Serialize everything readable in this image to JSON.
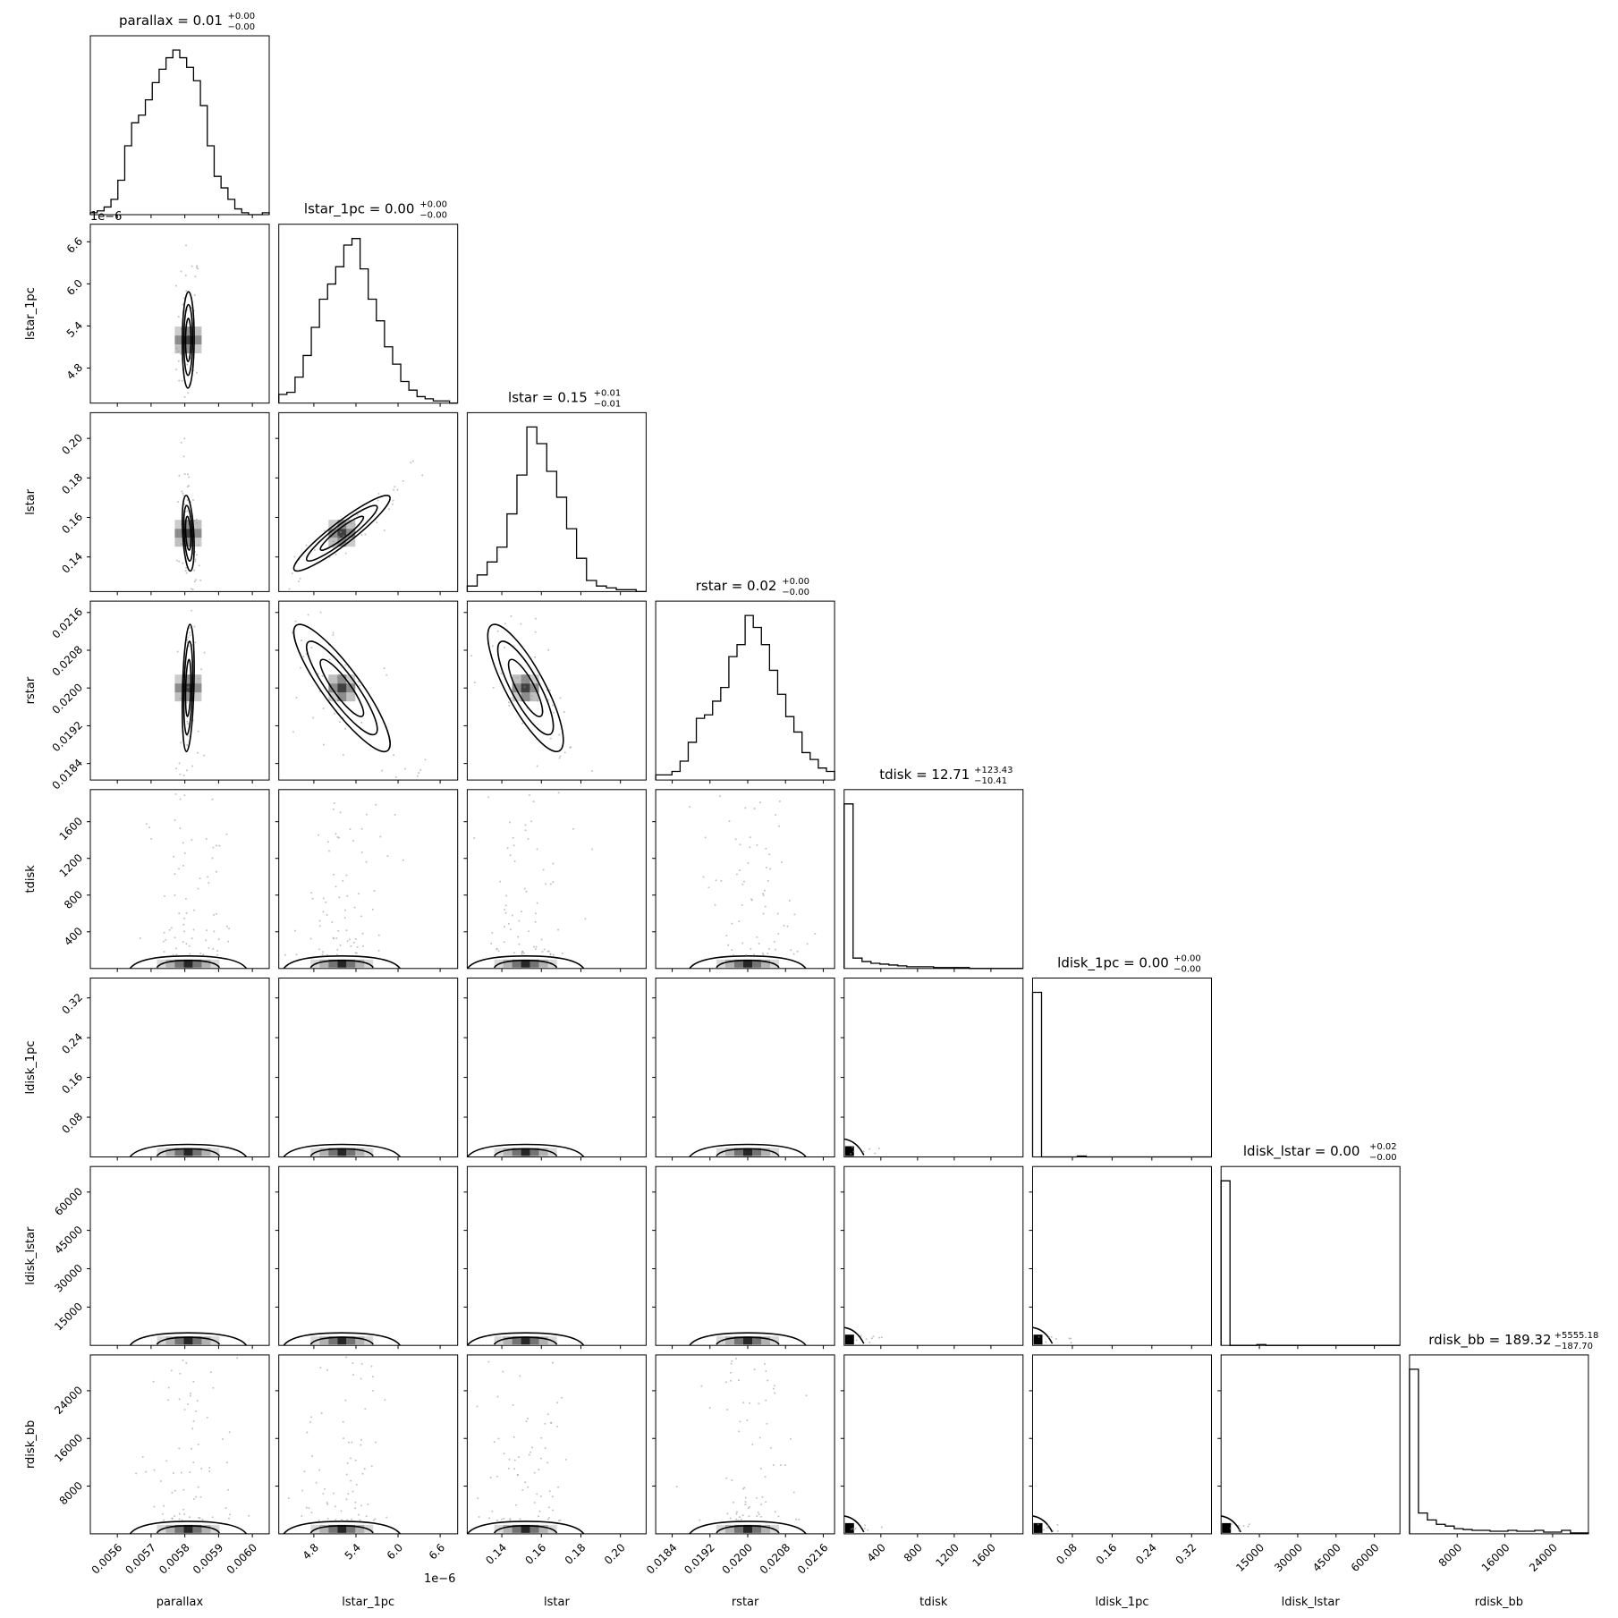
{
  "figure": {
    "type": "corner_plot",
    "params": [
      "parallax",
      "lstar_1pc",
      "lstar",
      "rstar",
      "tdisk",
      "ldisk_1pc",
      "ldisk_lstar",
      "rdisk_bb"
    ],
    "offset_labels": {
      "lstar_1pc_y": "1e−6",
      "lstar_1pc_x": "1e−6"
    }
  },
  "chart_data": {
    "type": "corner",
    "colors": {
      "line": "#000000",
      "points": "#9a9a9a",
      "density": "#000000",
      "background": "#ffffff"
    },
    "params": [
      {
        "name": "parallax",
        "label": "parallax",
        "title_main": "parallax = 0.01",
        "title_plus": "+0.00",
        "title_minus": "−0.00",
        "range": [
          0.00552,
          0.00605
        ],
        "ticks": [
          0.0056,
          0.0057,
          0.0058,
          0.0059,
          0.006
        ],
        "tick_labels": [
          "0.0056",
          "0.0057",
          "0.0058",
          "0.0059",
          "0.0060"
        ],
        "hist": [
          1,
          2,
          4,
          8,
          18,
          36,
          48,
          52,
          60,
          69,
          76,
          82,
          86,
          82,
          77,
          70,
          57,
          36,
          20,
          14,
          8,
          3,
          1,
          0,
          0,
          1
        ]
      },
      {
        "name": "lstar_1pc",
        "label": "lstar_1pc",
        "title_main": "lstar_1pc = 0.00",
        "title_plus": "+0.00",
        "title_minus": "−0.00",
        "range": [
          4.3e-06,
          6.85e-06
        ],
        "ticks": [
          4.8e-06,
          5.4e-06,
          6e-06,
          6.6e-06
        ],
        "tick_labels": [
          "4.8",
          "5.4",
          "6.0",
          "6.6"
        ],
        "hist": [
          4,
          5,
          12,
          22,
          35,
          48,
          55,
          63,
          73,
          76,
          62,
          48,
          38,
          26,
          18,
          10,
          6,
          3,
          2,
          1,
          1,
          0
        ]
      },
      {
        "name": "lstar",
        "label": "lstar",
        "title_main": "lstar = 0.15",
        "title_plus": "+0.01",
        "title_minus": "−0.01",
        "range": [
          0.1225,
          0.213
        ],
        "ticks": [
          0.14,
          0.16,
          0.18,
          0.2
        ],
        "tick_labels": [
          "0.14",
          "0.16",
          "0.18",
          "0.20"
        ],
        "hist": [
          3,
          9,
          16,
          24,
          42,
          63,
          89,
          80,
          65,
          51,
          34,
          18,
          6,
          3,
          2,
          1,
          1,
          0
        ]
      },
      {
        "name": "rstar",
        "label": "rstar",
        "title_main": "rstar = 0.02",
        "title_plus": "+0.00",
        "title_minus": "−0.00",
        "range": [
          0.01805,
          0.02184
        ],
        "ticks": [
          0.0184,
          0.0192,
          0.02,
          0.0208,
          0.0216
        ],
        "tick_labels": [
          "0.0184",
          "0.0192",
          "0.0200",
          "0.0208",
          "0.0216"
        ],
        "hist": [
          3,
          3,
          5,
          11,
          22,
          36,
          38,
          46,
          54,
          72,
          79,
          96,
          89,
          79,
          64,
          50,
          37,
          28,
          16,
          12,
          7,
          5
        ]
      },
      {
        "name": "tdisk",
        "label": "tdisk",
        "title_main": "tdisk = 12.71",
        "title_plus": "+123.43",
        "title_minus": "−10.41",
        "range": [
          0,
          1950
        ],
        "ticks": [
          400,
          800,
          1200,
          1600
        ],
        "tick_labels": [
          "400",
          "800",
          "1200",
          "1600"
        ],
        "hist": [
          190,
          12,
          8,
          6,
          5,
          4,
          3,
          2,
          2,
          2,
          1,
          1,
          1,
          1,
          0,
          0,
          0,
          0,
          0,
          0
        ]
      },
      {
        "name": "ldisk_1pc",
        "label": "ldisk_1pc",
        "title_main": "ldisk_1pc = 0.00",
        "title_plus": "+0.00",
        "title_minus": "−0.00",
        "range": [
          0,
          0.36
        ],
        "ticks": [
          0.08,
          0.16,
          0.24,
          0.32
        ],
        "tick_labels": [
          "0.08",
          "0.16",
          "0.24",
          "0.32"
        ],
        "hist": [
          200,
          0,
          0,
          0,
          0,
          1,
          0,
          0,
          0,
          0,
          0,
          0,
          0,
          0,
          0,
          0,
          0,
          0,
          0,
          0
        ]
      },
      {
        "name": "ldisk_lstar",
        "label": "ldisk_lstar",
        "title_main": "ldisk_lstar = 0.00",
        "title_plus": "+0.02",
        "title_minus": "−0.00",
        "range": [
          0,
          70000
        ],
        "ticks": [
          15000,
          30000,
          45000,
          60000
        ],
        "tick_labels": [
          "15000",
          "30000",
          "45000",
          "60000"
        ],
        "hist": [
          200,
          0,
          0,
          0,
          1,
          0,
          0,
          0,
          0,
          0,
          0,
          0,
          0,
          0,
          0,
          0,
          0,
          0,
          0,
          0
        ]
      },
      {
        "name": "rdisk_bb",
        "label": "rdisk_bb",
        "title_main": "rdisk_bb = 189.32",
        "title_plus": "+5555.18",
        "title_minus": "−187.70",
        "range": [
          0,
          30000
        ],
        "ticks": [
          8000,
          16000,
          24000
        ],
        "tick_labels": [
          "8000",
          "16000",
          "24000"
        ],
        "hist": [
          190,
          24,
          16,
          11,
          9,
          6,
          5,
          4,
          4,
          3,
          3,
          4,
          3,
          3,
          4,
          2,
          2,
          4,
          1,
          1
        ]
      }
    ],
    "gaussian_pairs": [
      {
        "row": 1,
        "col": 0,
        "mx": 0.00581,
        "my": 5.2e-06,
        "sx": 7.2e-06,
        "sy": 2.8e-07,
        "rho": 0.05
      },
      {
        "row": 2,
        "col": 0,
        "mx": 0.00581,
        "my": 0.152,
        "sx": 7.2e-06,
        "sy": 0.0078,
        "rho": -0.35
      },
      {
        "row": 2,
        "col": 1,
        "mx": 5.2e-06,
        "my": 0.152,
        "sx": 2.8e-07,
        "sy": 0.0078,
        "rho": 0.93
      },
      {
        "row": 3,
        "col": 0,
        "mx": 0.00581,
        "my": 0.02,
        "sx": 7.2e-06,
        "sy": 0.00055,
        "rho": 0.3
      },
      {
        "row": 3,
        "col": 1,
        "mx": 5.2e-06,
        "my": 0.02,
        "sx": 2.8e-07,
        "sy": 0.00055,
        "rho": -0.88
      },
      {
        "row": 3,
        "col": 2,
        "mx": 0.152,
        "my": 0.02,
        "sx": 0.0078,
        "sy": 0.00055,
        "rho": -0.82
      }
    ],
    "tdisk_band_center": [
      0.00581,
      5.2e-06,
      0.152,
      0.02
    ]
  }
}
